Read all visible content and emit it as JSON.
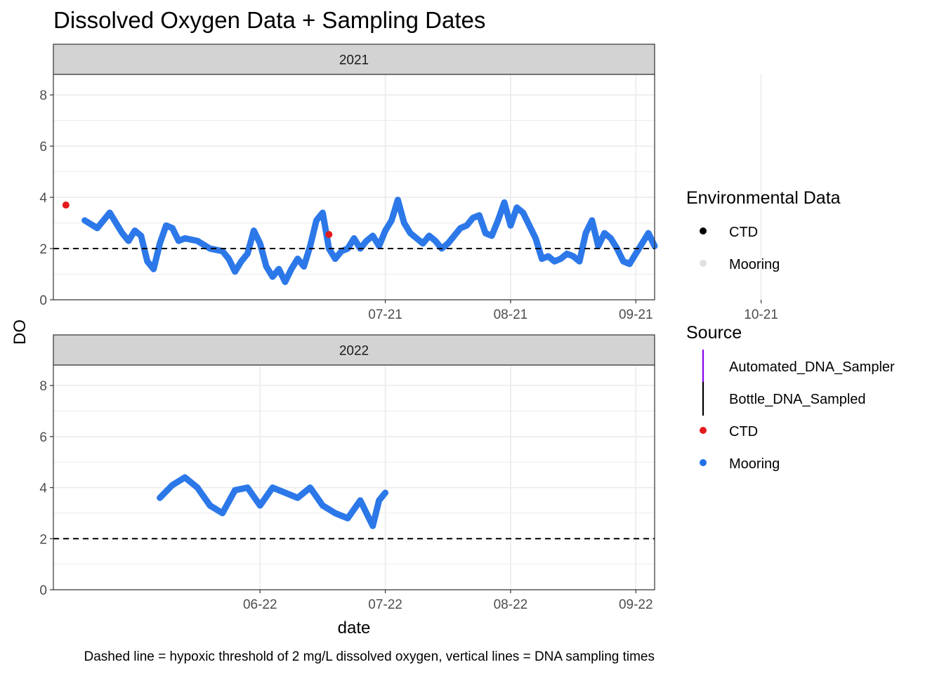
{
  "chart_data": {
    "type": "scatter",
    "title": "Dissolved Oxygen Data + Sampling Dates",
    "xlabel": "date",
    "ylabel": "DO",
    "caption": "Dashed line = hypoxic threshold of 2 mg/L dissolved oxygen, vertical lines = DNA sampling times",
    "colors": {
      "automated": "#8B00EE",
      "bottle": "#000000",
      "ctd": "#E41A1C",
      "mooring": "#2171E8",
      "strip": "#D3D3D3",
      "grid": "#EBEBEB",
      "threshold": "#000000"
    },
    "hypoxic_threshold": 2,
    "ylim": [
      0,
      8.8
    ],
    "y_ticks": [
      0,
      2,
      4,
      6,
      8
    ],
    "y_tick_labels": [
      "0",
      "2",
      "4",
      "6",
      "8"
    ],
    "facets": [
      {
        "label": "2021",
        "xlim": [
          -26.5,
          21.5
        ],
        "x_ticks": [
          0,
          10,
          20,
          30
        ],
        "x_tick_values": [
          0,
          10,
          20,
          30
        ],
        "x_tick_labels": [
          "07-21",
          "08-21",
          "09-21",
          "10-21"
        ],
        "x_tick_offsets": [
          0,
          10,
          20,
          30
        ],
        "mooring_series": [
          [
            -24,
            3.1
          ],
          [
            -23,
            2.8
          ],
          [
            -22,
            3.4
          ],
          [
            -21,
            2.6
          ],
          [
            -20.5,
            2.3
          ],
          [
            -20,
            2.7
          ],
          [
            -19.5,
            2.5
          ],
          [
            -19,
            1.5
          ],
          [
            -18.5,
            1.2
          ],
          [
            -18,
            2.2
          ],
          [
            -17.5,
            2.9
          ],
          [
            -17,
            2.8
          ],
          [
            -16.5,
            2.3
          ],
          [
            -16,
            2.4
          ],
          [
            -15,
            2.3
          ],
          [
            -14,
            2.0
          ],
          [
            -13,
            1.9
          ],
          [
            -12.5,
            1.6
          ],
          [
            -12,
            1.1
          ],
          [
            -11.5,
            1.5
          ],
          [
            -11,
            1.8
          ],
          [
            -10.5,
            2.7
          ],
          [
            -10,
            2.2
          ],
          [
            -9.5,
            1.3
          ],
          [
            -9,
            0.9
          ],
          [
            -8.5,
            1.2
          ],
          [
            -8,
            0.7
          ],
          [
            -7.5,
            1.2
          ],
          [
            -7,
            1.6
          ],
          [
            -6.5,
            1.3
          ],
          [
            -6,
            2.1
          ],
          [
            -5.5,
            3.1
          ],
          [
            -5,
            3.4
          ],
          [
            -4.5,
            2.0
          ],
          [
            -4,
            1.6
          ],
          [
            -3.5,
            1.9
          ],
          [
            -3,
            2.0
          ],
          [
            -2.5,
            2.4
          ],
          [
            -2,
            2.0
          ],
          [
            -1.5,
            2.3
          ],
          [
            -1,
            2.5
          ],
          [
            -0.5,
            2.1
          ],
          [
            0,
            2.7
          ],
          [
            0.5,
            3.1
          ],
          [
            1,
            3.9
          ],
          [
            1.5,
            3.0
          ],
          [
            2,
            2.6
          ],
          [
            2.5,
            2.4
          ],
          [
            3,
            2.2
          ],
          [
            3.5,
            2.5
          ],
          [
            4,
            2.3
          ],
          [
            4.5,
            2.0
          ],
          [
            5,
            2.2
          ],
          [
            5.5,
            2.5
          ],
          [
            6,
            2.8
          ],
          [
            6.5,
            2.9
          ],
          [
            7,
            3.2
          ],
          [
            7.5,
            3.3
          ],
          [
            8,
            2.6
          ],
          [
            8.5,
            2.5
          ],
          [
            9,
            3.1
          ],
          [
            9.5,
            3.8
          ],
          [
            10,
            2.9
          ],
          [
            10.5,
            3.6
          ],
          [
            11,
            3.4
          ],
          [
            11.5,
            2.9
          ],
          [
            12,
            2.4
          ],
          [
            12.5,
            1.6
          ],
          [
            13,
            1.7
          ],
          [
            13.5,
            1.5
          ],
          [
            14,
            1.6
          ],
          [
            14.5,
            1.8
          ],
          [
            15,
            1.7
          ],
          [
            15.5,
            1.5
          ],
          [
            16,
            2.6
          ],
          [
            16.5,
            3.1
          ],
          [
            17,
            2.1
          ],
          [
            17.5,
            2.6
          ],
          [
            18,
            2.4
          ],
          [
            18.5,
            2.0
          ],
          [
            19,
            1.5
          ],
          [
            19.5,
            1.4
          ],
          [
            20,
            1.8
          ],
          [
            20.5,
            2.2
          ],
          [
            21,
            2.6
          ],
          [
            21.5,
            2.1
          ]
        ],
        "ctd_points": [
          [
            -25.5,
            3.7
          ],
          [
            -4.5,
            2.55
          ]
        ],
        "automated_dna_sampler": [],
        "bottle_dna_sampled": []
      },
      {
        "label": "2022",
        "xlim": [
          -26.5,
          21.5
        ],
        "x_ticks": [
          -10,
          0,
          10,
          20
        ],
        "x_tick_values": [
          -10,
          0,
          10,
          20
        ],
        "x_tick_labels": [
          "06-22",
          "07-22",
          "08-22",
          "09-22"
        ],
        "x_tick_offsets": [
          -10,
          0,
          10,
          20
        ],
        "mooring_series": [
          [
            -18,
            3.6
          ],
          [
            -17,
            4.1
          ],
          [
            -16,
            4.4
          ],
          [
            -15,
            4.0
          ],
          [
            -14,
            3.3
          ],
          [
            -13,
            3.0
          ],
          [
            -12,
            3.9
          ],
          [
            -11,
            4.0
          ],
          [
            -10,
            3.3
          ],
          [
            -9,
            4.0
          ],
          [
            -8,
            3.8
          ],
          [
            -7,
            3.6
          ],
          [
            -6,
            4.0
          ],
          [
            -5,
            3.3
          ],
          [
            -4,
            3.0
          ],
          [
            -3,
            2.8
          ],
          [
            -2,
            3.5
          ],
          [
            -1,
            2.5
          ],
          [
            -0.5,
            3.5
          ],
          [
            0,
            3.8
          ]
        ],
        "ctd_points": [],
        "automated_dna_sampler": [],
        "bottle_dna_sampled": []
      }
    ]
  },
  "legend": {
    "environmental": {
      "title": "Environmental Data",
      "items": [
        "CTD",
        "Mooring"
      ]
    },
    "source": {
      "title": "Source",
      "items": [
        "Automated_DNA_Sampler",
        "Bottle_DNA_Sampled",
        "CTD",
        "Mooring"
      ]
    }
  }
}
